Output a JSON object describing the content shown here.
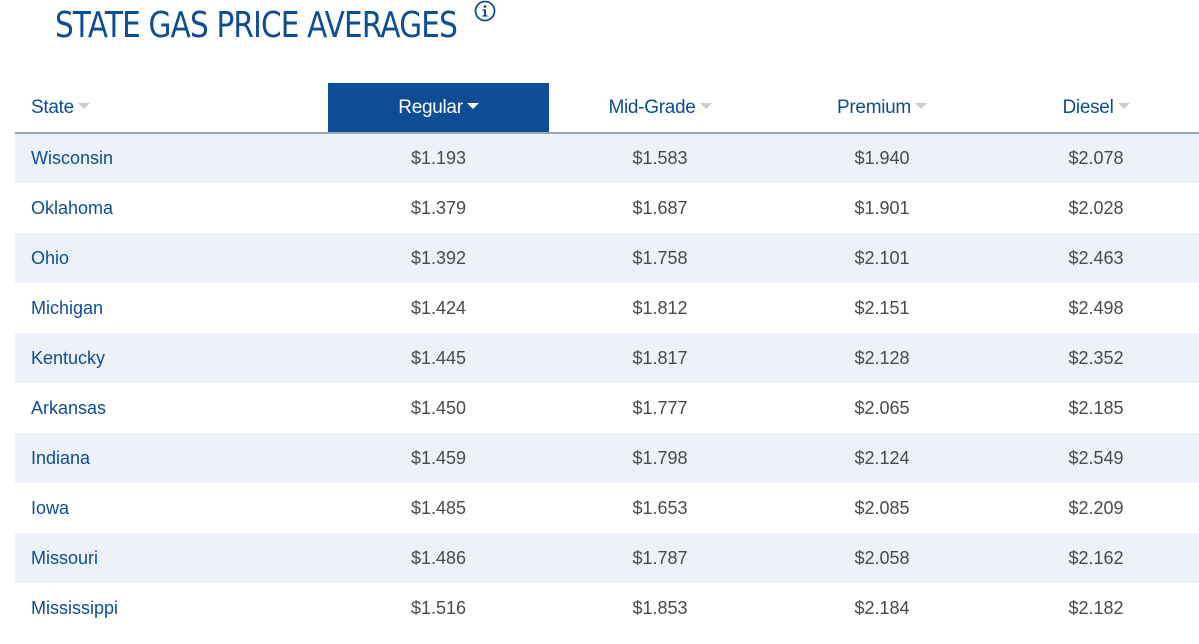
{
  "page": {
    "title": "STATE GAS PRICE AVERAGES",
    "info_icon": "info-circle-icon"
  },
  "colors": {
    "brand_blue": "#0d4d96",
    "row_stripe": "#edf2f9",
    "price_text": "#4a4a4a"
  },
  "table": {
    "sorted_by": "Regular",
    "headers": {
      "state": "State",
      "regular": "Regular",
      "midgrade": "Mid-Grade",
      "premium": "Premium",
      "diesel": "Diesel"
    },
    "rows": [
      {
        "state": "Wisconsin",
        "regular": "$1.193",
        "midgrade": "$1.583",
        "premium": "$1.940",
        "diesel": "$2.078"
      },
      {
        "state": "Oklahoma",
        "regular": "$1.379",
        "midgrade": "$1.687",
        "premium": "$1.901",
        "diesel": "$2.028"
      },
      {
        "state": "Ohio",
        "regular": "$1.392",
        "midgrade": "$1.758",
        "premium": "$2.101",
        "diesel": "$2.463"
      },
      {
        "state": "Michigan",
        "regular": "$1.424",
        "midgrade": "$1.812",
        "premium": "$2.151",
        "diesel": "$2.498"
      },
      {
        "state": "Kentucky",
        "regular": "$1.445",
        "midgrade": "$1.817",
        "premium": "$2.128",
        "diesel": "$2.352"
      },
      {
        "state": "Arkansas",
        "regular": "$1.450",
        "midgrade": "$1.777",
        "premium": "$2.065",
        "diesel": "$2.185"
      },
      {
        "state": "Indiana",
        "regular": "$1.459",
        "midgrade": "$1.798",
        "premium": "$2.124",
        "diesel": "$2.549"
      },
      {
        "state": "Iowa",
        "regular": "$1.485",
        "midgrade": "$1.653",
        "premium": "$2.085",
        "diesel": "$2.209"
      },
      {
        "state": "Missouri",
        "regular": "$1.486",
        "midgrade": "$1.787",
        "premium": "$2.058",
        "diesel": "$2.162"
      },
      {
        "state": "Mississippi",
        "regular": "$1.516",
        "midgrade": "$1.853",
        "premium": "$2.184",
        "diesel": "$2.182"
      }
    ]
  }
}
